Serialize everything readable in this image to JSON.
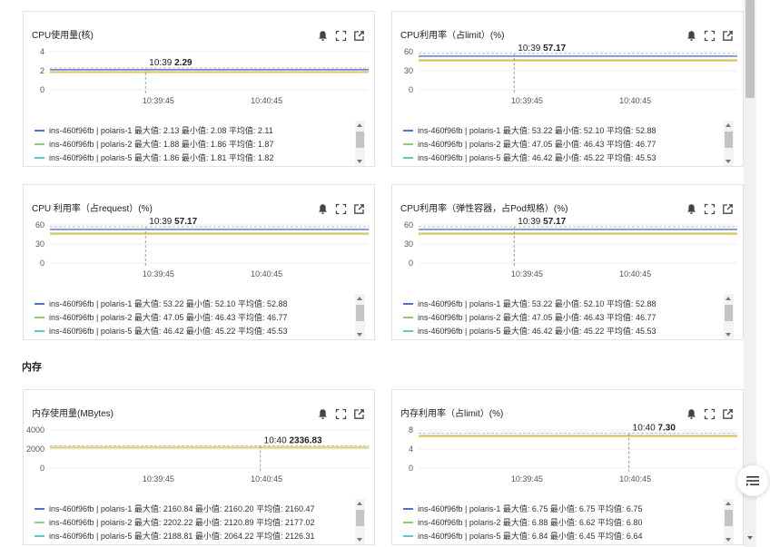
{
  "section_heading": "内存",
  "panels": [
    {
      "title": "CPU使用量(核)",
      "chart_data": {
        "type": "line",
        "yticks": [
          "4",
          "2",
          "0"
        ],
        "ylim": [
          0,
          4
        ],
        "xticks": [
          "10:39:45",
          "10:40:45"
        ],
        "tooltip_time": "10:39",
        "tooltip_value": "2.29",
        "series": [
          {
            "name": "ins-460f96fb | polaris-1",
            "value": 2.11,
            "color": "#5470c6",
            "legend": "ins-460f96fb | polaris-1  最大值: 2.13  最小值: 2.08  平均值: 2.11"
          },
          {
            "name": "ins-460f96fb | polaris-2",
            "value": 1.87,
            "color": "#91cc75",
            "legend": "ins-460f96fb | polaris-2  最大值: 1.88  最小值: 1.86  平均值: 1.87"
          },
          {
            "name": "ins-460f96fb | polaris-5",
            "value": 1.82,
            "color": "#fac858",
            "legend": "ins-460f96fb | polaris-5  最大值: 1.86  最小值: 1.81  平均值: 1.82"
          }
        ]
      }
    },
    {
      "title": "CPU利用率（占limit）(%)",
      "chart_data": {
        "type": "line",
        "yticks": [
          "60",
          "30",
          "0"
        ],
        "ylim": [
          0,
          60
        ],
        "xticks": [
          "10:39:45",
          "10:40:45"
        ],
        "tooltip_time": "10:39",
        "tooltip_value": "57.17",
        "series": [
          {
            "name": "ins-460f96fb | polaris-1",
            "value": 52.88,
            "color": "#5470c6",
            "legend": "ins-460f96fb | polaris-1  最大值: 53.22  最小值: 52.10  平均值: 52.88"
          },
          {
            "name": "ins-460f96fb | polaris-2",
            "value": 46.77,
            "color": "#91cc75",
            "legend": "ins-460f96fb | polaris-2  最大值: 47.05  最小值: 46.43  平均值: 46.77"
          },
          {
            "name": "ins-460f96fb | polaris-5",
            "value": 45.53,
            "color": "#fac858",
            "legend": "ins-460f96fb | polaris-5  最大值: 46.42  最小值: 45.22  平均值: 45.53"
          }
        ]
      }
    },
    {
      "title": "CPU 利用率（占request）(%)",
      "chart_data": {
        "type": "line",
        "yticks": [
          "60",
          "30",
          "0"
        ],
        "ylim": [
          0,
          60
        ],
        "xticks": [
          "10:39:45",
          "10:40:45"
        ],
        "tooltip_time": "10:39",
        "tooltip_value": "57.17",
        "series": [
          {
            "name": "ins-460f96fb | polaris-1",
            "value": 52.88,
            "color": "#5470c6",
            "legend": "ins-460f96fb | polaris-1  最大值: 53.22  最小值: 52.10  平均值: 52.88"
          },
          {
            "name": "ins-460f96fb | polaris-2",
            "value": 46.77,
            "color": "#91cc75",
            "legend": "ins-460f96fb | polaris-2  最大值: 47.05  最小值: 46.43  平均值: 46.77"
          },
          {
            "name": "ins-460f96fb | polaris-5",
            "value": 45.53,
            "color": "#fac858",
            "legend": "ins-460f96fb | polaris-5  最大值: 46.42  最小值: 45.22  平均值: 45.53"
          }
        ]
      }
    },
    {
      "title": "CPU利用率（弹性容器，占Pod规格）(%)",
      "chart_data": {
        "type": "line",
        "yticks": [
          "60",
          "30",
          "0"
        ],
        "ylim": [
          0,
          60
        ],
        "xticks": [
          "10:39:45",
          "10:40:45"
        ],
        "tooltip_time": "10:39",
        "tooltip_value": "57.17",
        "series": [
          {
            "name": "ins-460f96fb | polaris-1",
            "value": 52.88,
            "color": "#5470c6",
            "legend": "ins-460f96fb | polaris-1  最大值: 53.22  最小值: 52.10  平均值: 52.88"
          },
          {
            "name": "ins-460f96fb | polaris-2",
            "value": 46.77,
            "color": "#91cc75",
            "legend": "ins-460f96fb | polaris-2  最大值: 47.05  最小值: 46.43  平均值: 46.77"
          },
          {
            "name": "ins-460f96fb | polaris-5",
            "value": 45.53,
            "color": "#fac858",
            "legend": "ins-460f96fb | polaris-5  最大值: 46.42  最小值: 45.22  平均值: 45.53"
          }
        ]
      }
    },
    {
      "title": "内存使用量(MBytes)",
      "chart_data": {
        "type": "line",
        "yticks": [
          "4000",
          "2000",
          "0"
        ],
        "ylim": [
          0,
          4000
        ],
        "xticks": [
          "10:39:45",
          "10:40:45"
        ],
        "tooltip_time": "10:40",
        "tooltip_value": "2336.83",
        "series": [
          {
            "name": "ins-460f96fb | polaris-1",
            "value": 2160.47,
            "color": "#5470c6",
            "legend": "ins-460f96fb | polaris-1  最大值: 2160.84  最小值: 2160.20  平均值: 2160.47"
          },
          {
            "name": "ins-460f96fb | polaris-2",
            "value": 2177.02,
            "color": "#91cc75",
            "legend": "ins-460f96fb | polaris-2  最大值: 2202.22  最小值: 2120.89  平均值: 2177.02"
          },
          {
            "name": "ins-460f96fb | polaris-5",
            "value": 2126.31,
            "color": "#fac858",
            "legend": "ins-460f96fb | polaris-5  最大值: 2188.81  最小值: 2064.22  平均值: 2126.31"
          }
        ]
      }
    },
    {
      "title": "内存利用率（占limit）(%)",
      "chart_data": {
        "type": "line",
        "yticks": [
          "8",
          "4",
          "0"
        ],
        "ylim": [
          0,
          8
        ],
        "xticks": [
          "10:39:45",
          "10:40:45"
        ],
        "tooltip_time": "10:40",
        "tooltip_value": "7.30",
        "series": [
          {
            "name": "ins-460f96fb | polaris-1",
            "value": 6.75,
            "color": "#5470c6",
            "legend": "ins-460f96fb | polaris-1  最大值: 6.75  最小值: 6.75  平均值: 6.75"
          },
          {
            "name": "ins-460f96fb | polaris-2",
            "value": 6.8,
            "color": "#91cc75",
            "legend": "ins-460f96fb | polaris-2  最大值: 6.88  最小值: 6.62  平均值: 6.80"
          },
          {
            "name": "ins-460f96fb | polaris-5",
            "value": 6.64,
            "color": "#fac858",
            "legend": "ins-460f96fb | polaris-5  最大值: 6.84  最小值: 6.45  平均值: 6.64"
          }
        ]
      }
    }
  ],
  "legend_swatch_colors": [
    "#5470c6",
    "#91cc75",
    "#5ec8c8"
  ],
  "icons": {
    "alarm": "bell-icon",
    "fullscreen": "expand-icon",
    "open": "external-link-icon",
    "float": "list-icon"
  }
}
